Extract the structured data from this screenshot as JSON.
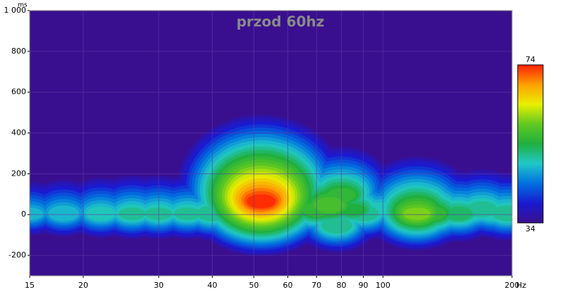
{
  "chart_data": {
    "type": "heatmap",
    "title": "przod 60hz",
    "x_label": "Hz",
    "y_label": "ms",
    "xscale": "log",
    "xlim": [
      15,
      200
    ],
    "xticks": [
      15,
      20,
      30,
      40,
      50,
      60,
      70,
      80,
      90,
      100,
      200
    ],
    "ylim": [
      -300,
      1000
    ],
    "yticks": [
      -200,
      0,
      200,
      400,
      600,
      800,
      {
        "value": 1000,
        "label": "1 000"
      }
    ],
    "grid": true,
    "zlim": [
      34,
      74
    ],
    "colorscale": [
      "#3a0f8f",
      "#1a1ad0",
      "#0070e0",
      "#20c8c8",
      "#20b040",
      "#60c820",
      "#e8f000",
      "#ffa000",
      "#ff2000"
    ],
    "background": "#3a0f8f",
    "spots": {
      "freq": [
        15,
        18,
        22,
        26,
        30,
        35,
        40,
        45,
        48,
        52,
        55,
        58,
        60,
        65,
        70,
        75,
        78,
        80,
        85,
        90,
        95,
        100,
        110,
        120,
        125,
        130,
        140,
        150,
        160,
        170,
        180,
        195
      ],
      "time": [
        0,
        0,
        0,
        0,
        0,
        0,
        0,
        10,
        120,
        60,
        40,
        150,
        130,
        30,
        20,
        40,
        -60,
        90,
        20,
        0,
        20,
        20,
        0,
        0,
        10,
        0,
        0,
        0,
        0,
        20,
        0,
        0
      ],
      "level": [
        48,
        49,
        50,
        51,
        51,
        51,
        52,
        56,
        50,
        74,
        66,
        47,
        49,
        54,
        56,
        58,
        52,
        56,
        54,
        52,
        50,
        50,
        47,
        60,
        56,
        56,
        50,
        53,
        50,
        52,
        50,
        52
      ]
    }
  }
}
